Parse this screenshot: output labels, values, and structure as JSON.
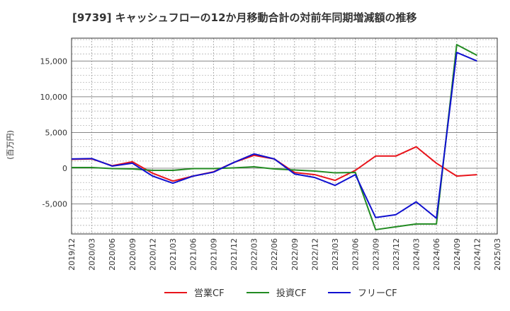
{
  "chart_data": {
    "type": "line",
    "title": "[9739]  キャッシュフローの12か月移動合計の対前年同期増減額の推移",
    "ylabel": "(百万円)",
    "xlabel": "",
    "ylim": [
      -9200,
      18200
    ],
    "yticks": [
      -5000,
      0,
      5000,
      10000,
      15000
    ],
    "ytick_labels": [
      "-5,000",
      "0",
      "5,000",
      "10,000",
      "15,000"
    ],
    "xtick_labels": [
      "2019/12",
      "2020/03",
      "2020/06",
      "2020/09",
      "2020/12",
      "2021/03",
      "2021/06",
      "2021/09",
      "2021/12",
      "2022/03",
      "2022/06",
      "2022/09",
      "2022/12",
      "2023/03",
      "2023/06",
      "2023/09",
      "2023/12",
      "2024/03",
      "2024/06",
      "2024/09",
      "2024/12",
      "2025/03"
    ],
    "grid": true,
    "legend_position": "bottom",
    "series": [
      {
        "name": "営業CF",
        "color": "#e8141b",
        "values": [
          1250,
          1300,
          350,
          900,
          -700,
          -1800,
          -1100,
          -500,
          800,
          1800,
          1300,
          -600,
          -900,
          -1700,
          -300,
          1700,
          1700,
          3000,
          700,
          -1100,
          -900,
          null
        ]
      },
      {
        "name": "投資CF",
        "color": "#228b22",
        "values": [
          100,
          100,
          -50,
          -100,
          -300,
          -300,
          -50,
          -50,
          50,
          200,
          -100,
          -250,
          -400,
          -650,
          -600,
          -8600,
          -8200,
          -7800,
          -7800,
          17300,
          15800,
          null
        ]
      },
      {
        "name": "フリーCF",
        "color": "#1010d0",
        "values": [
          1300,
          1350,
          300,
          700,
          -1100,
          -2100,
          -1100,
          -550,
          800,
          2000,
          1300,
          -800,
          -1300,
          -2400,
          -900,
          -6900,
          -6500,
          -4700,
          -7000,
          16200,
          15000,
          null
        ]
      }
    ]
  }
}
